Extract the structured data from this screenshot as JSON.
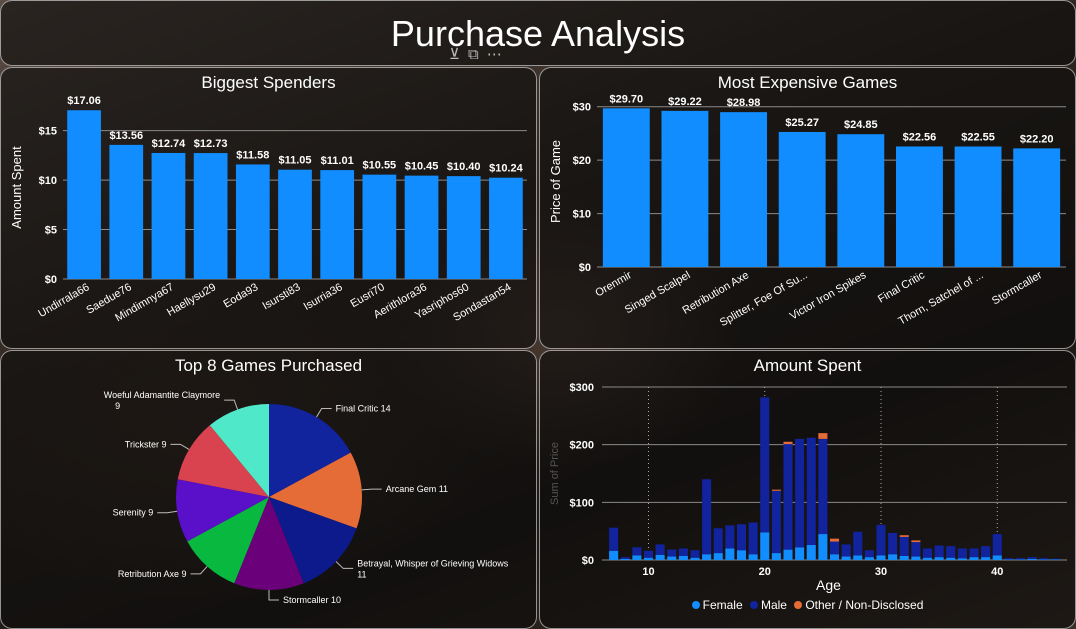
{
  "header": {
    "title": "Purchase Analysis",
    "icons": [
      "filter-icon",
      "expand-icon",
      "more-icon"
    ]
  },
  "colors": {
    "bar": "#118dff",
    "female": "#118dff",
    "male": "#12239e",
    "other": "#e66c37",
    "grid": "#8a8a8a"
  },
  "chart_data": [
    {
      "id": "biggest-spenders",
      "type": "bar",
      "title": "Biggest Spenders",
      "xlabel": "",
      "ylabel": "Amount Spent",
      "ylim": [
        0,
        18.5
      ],
      "yticks": [
        0,
        5,
        10,
        15
      ],
      "ytick_labels": [
        "$0",
        "$5",
        "$10",
        "$15"
      ],
      "categories": [
        "Undirrala66",
        "Saedue76",
        "Mindimnya67",
        "Haellysu29",
        "Eoda93",
        "Isursti83",
        "Isurria36",
        "Eusri70",
        "Aerithlora36",
        "Yasriphos60",
        "Sondastan54"
      ],
      "values": [
        17.06,
        13.56,
        12.74,
        12.73,
        11.58,
        11.05,
        11.01,
        10.55,
        10.45,
        10.4,
        10.24
      ],
      "value_labels": [
        "$17.06",
        "$13.56",
        "$12.74",
        "$12.73",
        "$11.58",
        "$11.05",
        "$11.01",
        "$10.55",
        "$10.45",
        "$10.40",
        "$10.24"
      ],
      "grid": true
    },
    {
      "id": "most-expensive-games",
      "type": "bar",
      "title": "Most Expensive Games",
      "xlabel": "",
      "ylabel": "Price of Game",
      "ylim": [
        0,
        32
      ],
      "yticks": [
        0,
        10,
        20,
        30
      ],
      "ytick_labels": [
        "$0",
        "$10",
        "$20",
        "$30"
      ],
      "categories": [
        "Orenmir",
        "Singed Scalpel",
        "Retribution Axe",
        "Splitter, Foe Of Su...",
        "Victor Iron Spikes",
        "Final Critic",
        "Thorn, Satchel of ...",
        "Stormcaller"
      ],
      "values": [
        29.7,
        29.22,
        28.98,
        25.27,
        24.85,
        22.56,
        22.55,
        22.2
      ],
      "value_labels": [
        "$29.70",
        "$29.22",
        "$28.98",
        "$25.27",
        "$24.85",
        "$22.56",
        "$22.55",
        "$22.20"
      ],
      "grid": true
    },
    {
      "id": "top-8-games",
      "type": "pie",
      "title": "Top 8 Games Purchased",
      "slices": [
        {
          "name": "Final Critic",
          "value": 14,
          "label": "Final Critic 14",
          "color": "#12239e"
        },
        {
          "name": "Arcane Gem",
          "value": 11,
          "label": "Arcane Gem 11",
          "color": "#e66c37"
        },
        {
          "name": "Betrayal, Whisper of Grieving Widows",
          "value": 11,
          "label": "Betrayal, Whisper of Grieving Widows",
          "label2": "11",
          "color": "#0d1a8c"
        },
        {
          "name": "Stormcaller",
          "value": 10,
          "label": "Stormcaller 10",
          "color": "#6b007b"
        },
        {
          "name": "Retribution Axe",
          "value": 9,
          "label": "Retribution Axe 9",
          "color": "#08b83f"
        },
        {
          "name": "Serenity",
          "value": 9,
          "label": "Serenity 9",
          "color": "#5a0fc8"
        },
        {
          "name": "Trickster",
          "value": 9,
          "label": "Trickster 9",
          "color": "#d9424f"
        },
        {
          "name": "Woeful Adamantite Claymore",
          "value": 9,
          "label": "Woeful Adamantite Claymore",
          "label2": "9",
          "color": "#4fe8c8"
        }
      ]
    },
    {
      "id": "amount-spent",
      "type": "bar",
      "stacked": true,
      "title": "Amount Spent",
      "xlabel": "Age",
      "ylabel": "Sum of Price",
      "xlim": [
        6,
        46
      ],
      "xticks": [
        10,
        20,
        30,
        40
      ],
      "ylim": [
        0,
        300
      ],
      "yticks": [
        0,
        100,
        200,
        300
      ],
      "ytick_labels": [
        "$0",
        "$100",
        "$200",
        "$300"
      ],
      "legend": {
        "position": "bottom",
        "items": [
          "Female",
          "Male",
          "Other / Non-Disclosed"
        ]
      },
      "ages": [
        7,
        8,
        9,
        10,
        11,
        12,
        13,
        14,
        15,
        16,
        17,
        18,
        19,
        20,
        21,
        22,
        23,
        24,
        25,
        26,
        27,
        28,
        29,
        30,
        31,
        32,
        33,
        34,
        35,
        36,
        37,
        38,
        39,
        40,
        41,
        42,
        43,
        44,
        45
      ],
      "female": [
        16,
        2,
        8,
        4,
        9,
        6,
        7,
        4,
        10,
        12,
        20,
        17,
        10,
        48,
        12,
        18,
        22,
        26,
        45,
        10,
        6,
        8,
        5,
        8,
        10,
        7,
        6,
        4,
        5,
        4,
        3,
        5,
        5,
        8,
        1,
        1,
        2,
        1,
        1
      ],
      "male": [
        40,
        3,
        14,
        12,
        18,
        12,
        13,
        13,
        130,
        43,
        40,
        45,
        55,
        234,
        108,
        183,
        188,
        186,
        165,
        22,
        21,
        41,
        12,
        53,
        37,
        33,
        25,
        16,
        20,
        20,
        17,
        15,
        19,
        37,
        2,
        2,
        3,
        2,
        1
      ],
      "other": [
        0,
        0,
        0,
        0,
        0,
        0,
        0,
        0,
        0,
        0,
        0,
        0,
        0,
        0,
        2,
        4,
        0,
        0,
        10,
        5,
        0,
        0,
        0,
        0,
        0,
        3,
        3,
        0,
        0,
        0,
        0,
        0,
        0,
        0,
        0,
        0,
        0,
        0,
        0
      ]
    }
  ]
}
